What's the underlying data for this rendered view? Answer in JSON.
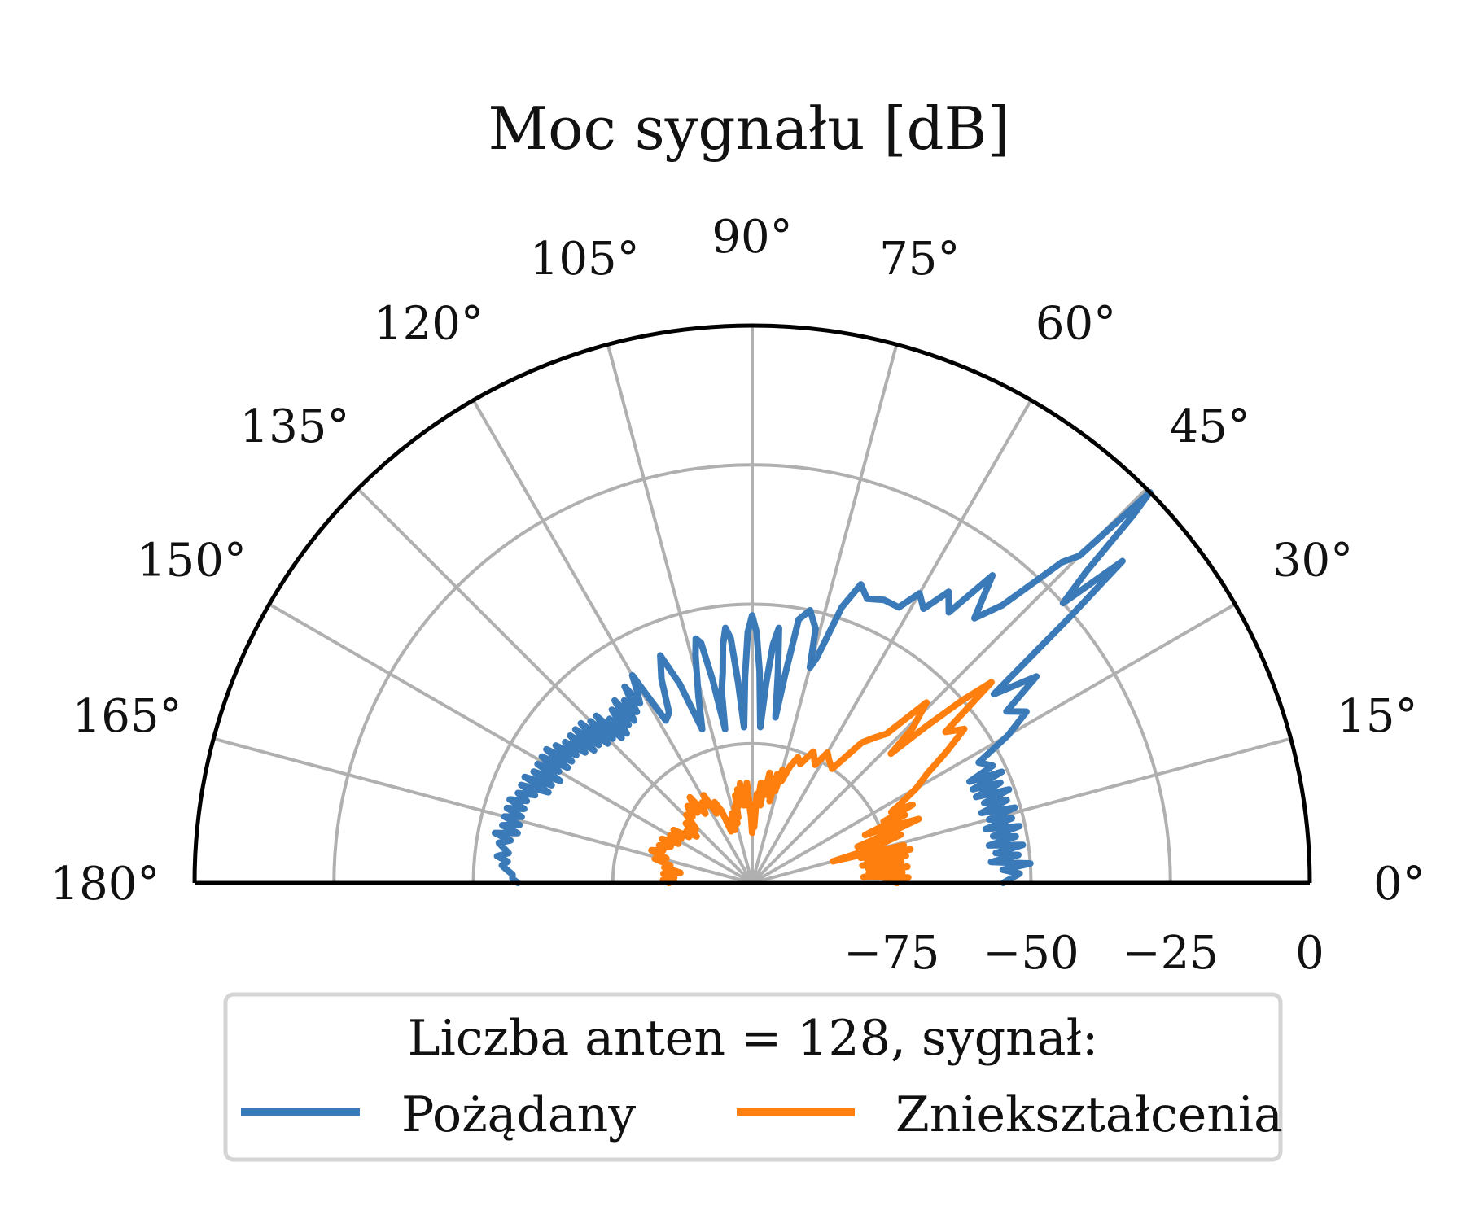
{
  "chart_data": {
    "type": "polar-line",
    "title": "Moc sygnału [dB]",
    "theta_range_deg": [
      0,
      180
    ],
    "r_range_db": [
      -100,
      0
    ],
    "r_ticks": [
      {
        "value": -75,
        "label": "−75"
      },
      {
        "value": -50,
        "label": "−50"
      },
      {
        "value": -25,
        "label": "−25"
      },
      {
        "value": 0,
        "label": "0"
      }
    ],
    "theta_ticks": [
      {
        "value": 0,
        "label": "0°"
      },
      {
        "value": 15,
        "label": "15°"
      },
      {
        "value": 30,
        "label": "30°"
      },
      {
        "value": 45,
        "label": "45°"
      },
      {
        "value": 60,
        "label": "60°"
      },
      {
        "value": 75,
        "label": "75°"
      },
      {
        "value": 90,
        "label": "90°"
      },
      {
        "value": 105,
        "label": "105°"
      },
      {
        "value": 120,
        "label": "120°"
      },
      {
        "value": 135,
        "label": "135°"
      },
      {
        "value": 150,
        "label": "150°"
      },
      {
        "value": 165,
        "label": "165°"
      },
      {
        "value": 180,
        "label": "180°"
      }
    ],
    "grid": true,
    "legend": {
      "title": "Liczba anten = 128, sygnał:",
      "placement": "bottom",
      "entries": [
        {
          "name": "Pożądany",
          "color": "#3a7ab8"
        },
        {
          "name": "Zniekształcenia",
          "color": "#ff7f0e"
        }
      ]
    },
    "series": [
      {
        "name": "Pożądany",
        "color": "#3a7ab8",
        "points": [
          [
            0,
            -55
          ],
          [
            2,
            -52
          ],
          [
            3,
            -55
          ],
          [
            4,
            -50
          ],
          [
            5,
            -57
          ],
          [
            6,
            -52
          ],
          [
            7,
            -56
          ],
          [
            8,
            -51
          ],
          [
            9,
            -57
          ],
          [
            10,
            -52
          ],
          [
            11,
            -56
          ],
          [
            12,
            -51
          ],
          [
            13,
            -57
          ],
          [
            14,
            -52
          ],
          [
            15,
            -56
          ],
          [
            16,
            -51
          ],
          [
            17,
            -57
          ],
          [
            18,
            -52
          ],
          [
            19,
            -56
          ],
          [
            20,
            -51
          ],
          [
            21,
            -57
          ],
          [
            22,
            -52
          ],
          [
            23,
            -57
          ],
          [
            24,
            -51
          ],
          [
            25,
            -57
          ],
          [
            26,
            -52
          ],
          [
            28,
            -54
          ],
          [
            30,
            -47
          ],
          [
            32,
            -42
          ],
          [
            34,
            -45
          ],
          [
            36,
            -37
          ],
          [
            38,
            -45
          ],
          [
            40,
            -25
          ],
          [
            41,
            -12
          ],
          [
            42,
            -25
          ],
          [
            43,
            -18
          ],
          [
            44,
            -5
          ],
          [
            44.5,
            0
          ],
          [
            45,
            -17
          ],
          [
            46,
            -20
          ],
          [
            48,
            -33
          ],
          [
            50,
            -38
          ],
          [
            52,
            -30
          ],
          [
            54,
            -40
          ],
          [
            56,
            -37
          ],
          [
            58,
            -42
          ],
          [
            60,
            -40
          ],
          [
            62,
            -44
          ],
          [
            65,
            -44
          ],
          [
            68,
            -45
          ],
          [
            70,
            -43
          ],
          [
            72,
            -48
          ],
          [
            74,
            -58
          ],
          [
            75,
            -60
          ],
          [
            76,
            -53
          ],
          [
            78,
            -50
          ],
          [
            80,
            -52
          ],
          [
            81,
            -62
          ],
          [
            82,
            -70
          ],
          [
            83,
            -62
          ],
          [
            84,
            -54
          ],
          [
            85,
            -57
          ],
          [
            86,
            -64
          ],
          [
            87,
            -72
          ],
          [
            88,
            -62
          ],
          [
            89,
            -55
          ],
          [
            90,
            -52
          ],
          [
            91,
            -55
          ],
          [
            92,
            -63
          ],
          [
            93,
            -72
          ],
          [
            94,
            -64
          ],
          [
            95,
            -56
          ],
          [
            96,
            -54
          ],
          [
            97,
            -57
          ],
          [
            98,
            -62
          ],
          [
            99,
            -65
          ],
          [
            100,
            -72
          ],
          [
            101,
            -63
          ],
          [
            102,
            -56
          ],
          [
            103,
            -55
          ],
          [
            104,
            -58
          ],
          [
            106,
            -65
          ],
          [
            108,
            -71
          ],
          [
            110,
            -62
          ],
          [
            112,
            -56
          ],
          [
            114,
            -60
          ],
          [
            116,
            -66
          ],
          [
            118,
            -67
          ],
          [
            120,
            -57
          ],
          [
            121,
            -60
          ],
          [
            122,
            -62
          ],
          [
            123,
            -58
          ],
          [
            124,
            -63
          ],
          [
            125,
            -60
          ],
          [
            126,
            -64
          ],
          [
            127,
            -59
          ],
          [
            128,
            -64
          ],
          [
            129,
            -60
          ],
          [
            130,
            -65
          ],
          [
            131,
            -61
          ],
          [
            132,
            -65
          ],
          [
            133,
            -59
          ],
          [
            134,
            -64
          ],
          [
            135,
            -59
          ],
          [
            136,
            -64
          ],
          [
            137,
            -58
          ],
          [
            138,
            -63
          ],
          [
            139,
            -58
          ],
          [
            140,
            -63
          ],
          [
            141,
            -58
          ],
          [
            142,
            -62
          ],
          [
            143,
            -58
          ],
          [
            144,
            -61
          ],
          [
            145,
            -57
          ],
          [
            146,
            -61
          ],
          [
            147,
            -56
          ],
          [
            148,
            -61
          ],
          [
            149,
            -56
          ],
          [
            150,
            -60
          ],
          [
            151,
            -56
          ],
          [
            152,
            -61
          ],
          [
            153,
            -56
          ],
          [
            154,
            -60
          ],
          [
            155,
            -55
          ],
          [
            156,
            -60
          ],
          [
            157,
            -55
          ],
          [
            158,
            -58
          ],
          [
            159,
            -55
          ],
          [
            160,
            -57
          ],
          [
            161,
            -54
          ],
          [
            162,
            -57
          ],
          [
            163,
            -54
          ],
          [
            164,
            -57
          ],
          [
            165,
            -54
          ],
          [
            166,
            -57
          ],
          [
            167,
            -54
          ],
          [
            168,
            -57
          ],
          [
            169,
            -53
          ],
          [
            170,
            -56
          ],
          [
            171,
            -54
          ],
          [
            172,
            -55
          ],
          [
            173,
            -56
          ],
          [
            174,
            -54
          ],
          [
            175,
            -56
          ],
          [
            176,
            -55
          ],
          [
            177,
            -56
          ],
          [
            178,
            -57
          ],
          [
            179,
            -57
          ],
          [
            180,
            -58
          ]
        ]
      },
      {
        "name": "Zniekształcenia",
        "color": "#ff7f0e",
        "points": [
          [
            0,
            -74
          ],
          [
            1,
            -76
          ],
          [
            2,
            -72
          ],
          [
            3,
            -80
          ],
          [
            4,
            -73
          ],
          [
            5,
            -79
          ],
          [
            6,
            -72
          ],
          [
            7,
            -79
          ],
          [
            8,
            -73
          ],
          [
            9,
            -80
          ],
          [
            10,
            -72
          ],
          [
            11,
            -79
          ],
          [
            12,
            -71
          ],
          [
            13,
            -80
          ],
          [
            14,
            -72
          ],
          [
            15,
            -85
          ],
          [
            16,
            -78
          ],
          [
            18,
            -72
          ],
          [
            19,
            -80
          ],
          [
            20,
            -74
          ],
          [
            21,
            -68
          ],
          [
            22,
            -73
          ],
          [
            23,
            -78
          ],
          [
            24,
            -70
          ],
          [
            25,
            -74
          ],
          [
            26,
            -68
          ],
          [
            27,
            -72
          ],
          [
            28,
            -70
          ],
          [
            30,
            -66
          ],
          [
            32,
            -63
          ],
          [
            34,
            -58
          ],
          [
            36,
            -53
          ],
          [
            38,
            -56
          ],
          [
            40,
            -44
          ],
          [
            41,
            -50
          ],
          [
            42,
            -58
          ],
          [
            43,
            -66
          ],
          [
            44,
            -60
          ],
          [
            46,
            -55
          ],
          [
            48,
            -64
          ],
          [
            50,
            -66
          ],
          [
            52,
            -68
          ],
          [
            55,
            -75
          ],
          [
            58,
            -74
          ],
          [
            60,
            -73
          ],
          [
            62,
            -76
          ],
          [
            65,
            -74
          ],
          [
            68,
            -77
          ],
          [
            70,
            -76
          ],
          [
            72,
            -78
          ],
          [
            74,
            -81
          ],
          [
            75,
            -79
          ],
          [
            76,
            -83
          ],
          [
            77,
            -80
          ],
          [
            78,
            -85
          ],
          [
            79,
            -81
          ],
          [
            80,
            -84
          ],
          [
            81,
            -80
          ],
          [
            82,
            -84
          ],
          [
            83,
            -82
          ],
          [
            84,
            -86
          ],
          [
            85,
            -82
          ],
          [
            86,
            -85
          ],
          [
            87,
            -84
          ],
          [
            88,
            -90
          ],
          [
            89,
            -86
          ],
          [
            90,
            -91
          ],
          [
            91,
            -88
          ],
          [
            92,
            -86
          ],
          [
            93,
            -82
          ],
          [
            94,
            -86
          ],
          [
            95,
            -83
          ],
          [
            96,
            -86
          ],
          [
            97,
            -82
          ],
          [
            98,
            -85
          ],
          [
            99,
            -83
          ],
          [
            100,
            -86
          ],
          [
            101,
            -84
          ],
          [
            102,
            -88
          ],
          [
            103,
            -86
          ],
          [
            104,
            -89
          ],
          [
            106,
            -87
          ],
          [
            108,
            -90
          ],
          [
            110,
            -88
          ],
          [
            112,
            -90
          ],
          [
            113,
            -86
          ],
          [
            115,
            -84
          ],
          [
            117,
            -86
          ],
          [
            119,
            -82
          ],
          [
            120,
            -84
          ],
          [
            122,
            -83
          ],
          [
            124,
            -85
          ],
          [
            126,
            -81
          ],
          [
            128,
            -84
          ],
          [
            130,
            -82
          ],
          [
            132,
            -84
          ],
          [
            134,
            -83
          ],
          [
            136,
            -86
          ],
          [
            138,
            -84
          ],
          [
            140,
            -87
          ],
          [
            142,
            -85
          ],
          [
            144,
            -86
          ],
          [
            146,
            -83
          ],
          [
            148,
            -85
          ],
          [
            150,
            -83
          ],
          [
            152,
            -85
          ],
          [
            154,
            -82
          ],
          [
            156,
            -84
          ],
          [
            158,
            -82
          ],
          [
            160,
            -83
          ],
          [
            162,
            -81
          ],
          [
            164,
            -84
          ],
          [
            166,
            -82
          ],
          [
            168,
            -85
          ],
          [
            170,
            -84
          ],
          [
            172,
            -87
          ],
          [
            174,
            -84
          ],
          [
            176,
            -86
          ],
          [
            178,
            -84
          ],
          [
            179,
            -86
          ],
          [
            180,
            -85
          ]
        ]
      }
    ]
  }
}
